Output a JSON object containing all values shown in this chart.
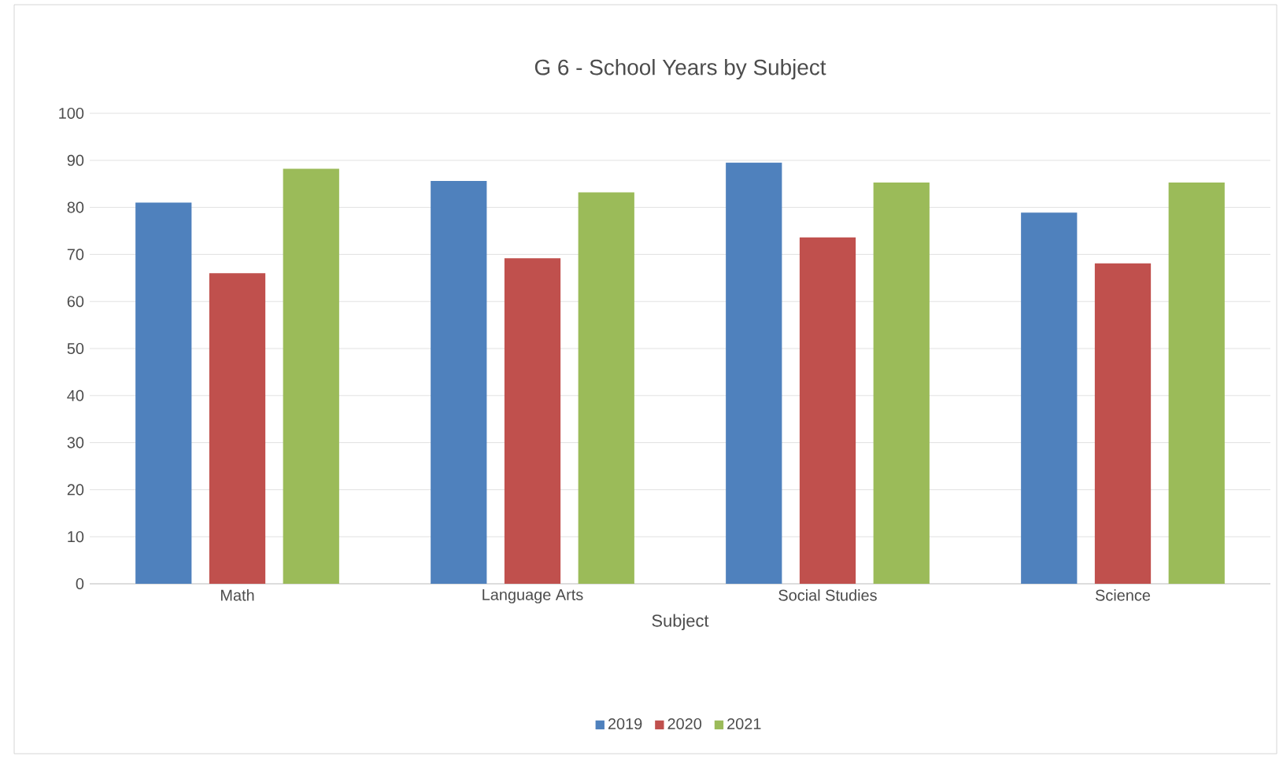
{
  "chart_data": {
    "type": "bar",
    "title": "G 6 - School Years by Subject",
    "xlabel": "Subject",
    "categories": [
      "Math",
      "Language Arts",
      "Social Studies",
      "Science"
    ],
    "series": [
      {
        "name": "2019",
        "color": "#4f81bd",
        "values": [
          81,
          85.6,
          89.5,
          78.9
        ]
      },
      {
        "name": "2020",
        "color": "#c0504d",
        "values": [
          66,
          69.2,
          73.6,
          68.1
        ]
      },
      {
        "name": "2021",
        "color": "#9bbb59",
        "values": [
          88.2,
          83.2,
          85.3,
          85.3
        ]
      }
    ],
    "ylim": [
      0,
      100
    ],
    "yticks": [
      0,
      10,
      20,
      30,
      40,
      50,
      60,
      70,
      80,
      90,
      100
    ],
    "grid": "y",
    "legend": "bottom"
  }
}
